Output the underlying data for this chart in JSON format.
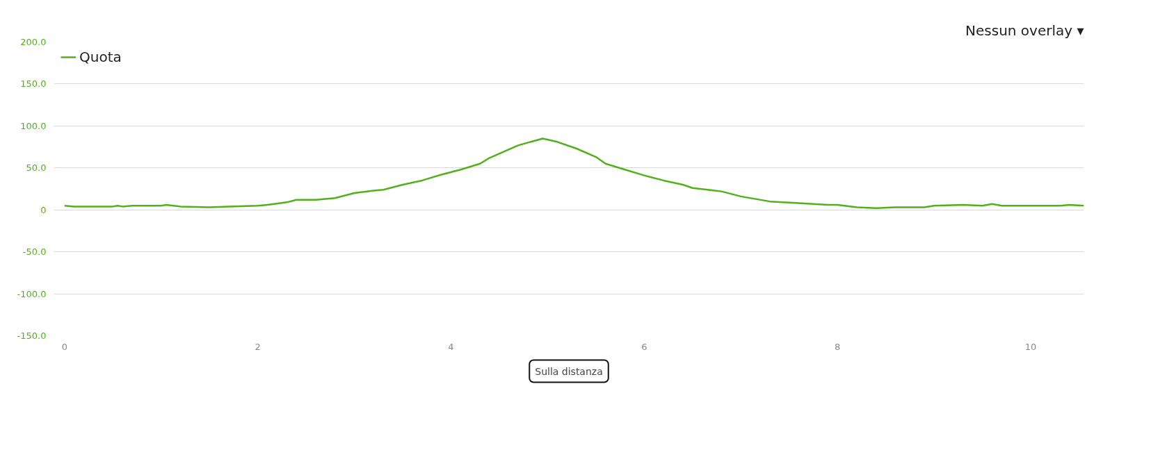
{
  "chart_data": {
    "type": "line",
    "annotations": [
      "Nessun overlay ▾",
      "Sulla distanza"
    ],
    "x": [
      0,
      0.1,
      0.3,
      0.5,
      0.55,
      0.6,
      0.7,
      1.0,
      1.05,
      1.2,
      1.5,
      1.7,
      2.0,
      2.1,
      2.3,
      2.4,
      2.6,
      2.8,
      3.0,
      3.2,
      3.3,
      3.5,
      3.7,
      3.9,
      4.1,
      4.3,
      4.4,
      4.6,
      4.7,
      4.95,
      5.1,
      5.3,
      5.5,
      5.6,
      5.8,
      6.0,
      6.2,
      6.4,
      6.5,
      6.8,
      7.0,
      7.3,
      7.6,
      7.9,
      8.0,
      8.2,
      8.4,
      8.6,
      8.9,
      9.0,
      9.3,
      9.5,
      9.6,
      9.7,
      10.0,
      10.3,
      10.4,
      10.55
    ],
    "series": [
      {
        "name": "Quota",
        "color": "#52b01a",
        "values": [
          5,
          4,
          4,
          4,
          5,
          4,
          5,
          5,
          6,
          4,
          3,
          4,
          5,
          6,
          9,
          12,
          12,
          14,
          20,
          23,
          24,
          30,
          35,
          42,
          48,
          55,
          62,
          72,
          77,
          85,
          81,
          73,
          63,
          55,
          48,
          41,
          35,
          30,
          26,
          22,
          16,
          10,
          8,
          6,
          6,
          3,
          2,
          3,
          3,
          5,
          6,
          5,
          7,
          5,
          5,
          5,
          6,
          5
        ]
      }
    ],
    "xlim": [
      -0.11,
      10.55
    ],
    "ylim": [
      -150,
      200
    ],
    "xticks": [
      0,
      2,
      4,
      6,
      8,
      10
    ],
    "yticks": [
      {
        "value": -150,
        "label": "-150.0"
      },
      {
        "value": -100,
        "label": "-100.0"
      },
      {
        "value": -50,
        "label": "-50.0"
      },
      0,
      {
        "value": 50,
        "label": "50.0"
      },
      {
        "value": 100,
        "label": "100.0"
      },
      {
        "value": 150,
        "label": "150.0"
      },
      {
        "value": 200,
        "label": "200.0"
      }
    ],
    "grid": "y",
    "legend": "top left",
    "marker": "none",
    "line_style": "solid"
  }
}
